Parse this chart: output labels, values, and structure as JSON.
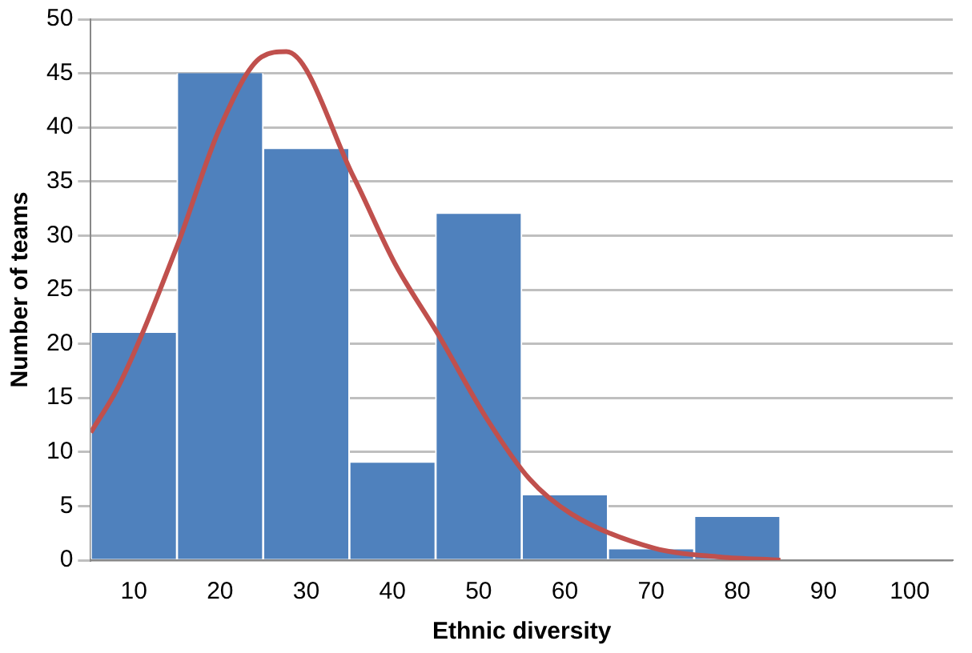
{
  "chart_data": {
    "type": "histogram",
    "xlabel": "Ethnic diversity",
    "ylabel": "Number of teams",
    "bins": [
      5,
      15,
      25,
      35,
      45,
      55,
      65,
      75,
      85,
      95,
      105
    ],
    "values": [
      21,
      45,
      38,
      9,
      32,
      6,
      1,
      4,
      0,
      0
    ],
    "color": "#4f81bd",
    "series": [
      {
        "type": "line",
        "color": "#c0504d",
        "x": [
          5,
          8.3,
          15,
          20,
          24.8,
          27.7,
          35.5,
          40.3,
          45.2,
          51,
          55.9,
          60.7,
          70.4,
          78,
          85
        ],
        "values": [
          11.8,
          16.2,
          29,
          40,
          46.5,
          47,
          35.4,
          27.4,
          21,
          13,
          7.5,
          4.3,
          1.1,
          0.3,
          0
        ]
      }
    ],
    "xlim": [
      5,
      105
    ],
    "xticks": [
      10,
      20,
      30,
      40,
      50,
      60,
      70,
      80,
      90,
      100
    ],
    "ylim": [
      0,
      50
    ],
    "yticks": [
      0,
      5,
      10,
      15,
      20,
      25,
      30,
      35,
      40,
      45,
      50
    ],
    "grid": "y",
    "legend": false,
    "marker": "none",
    "line_style": "solid"
  }
}
